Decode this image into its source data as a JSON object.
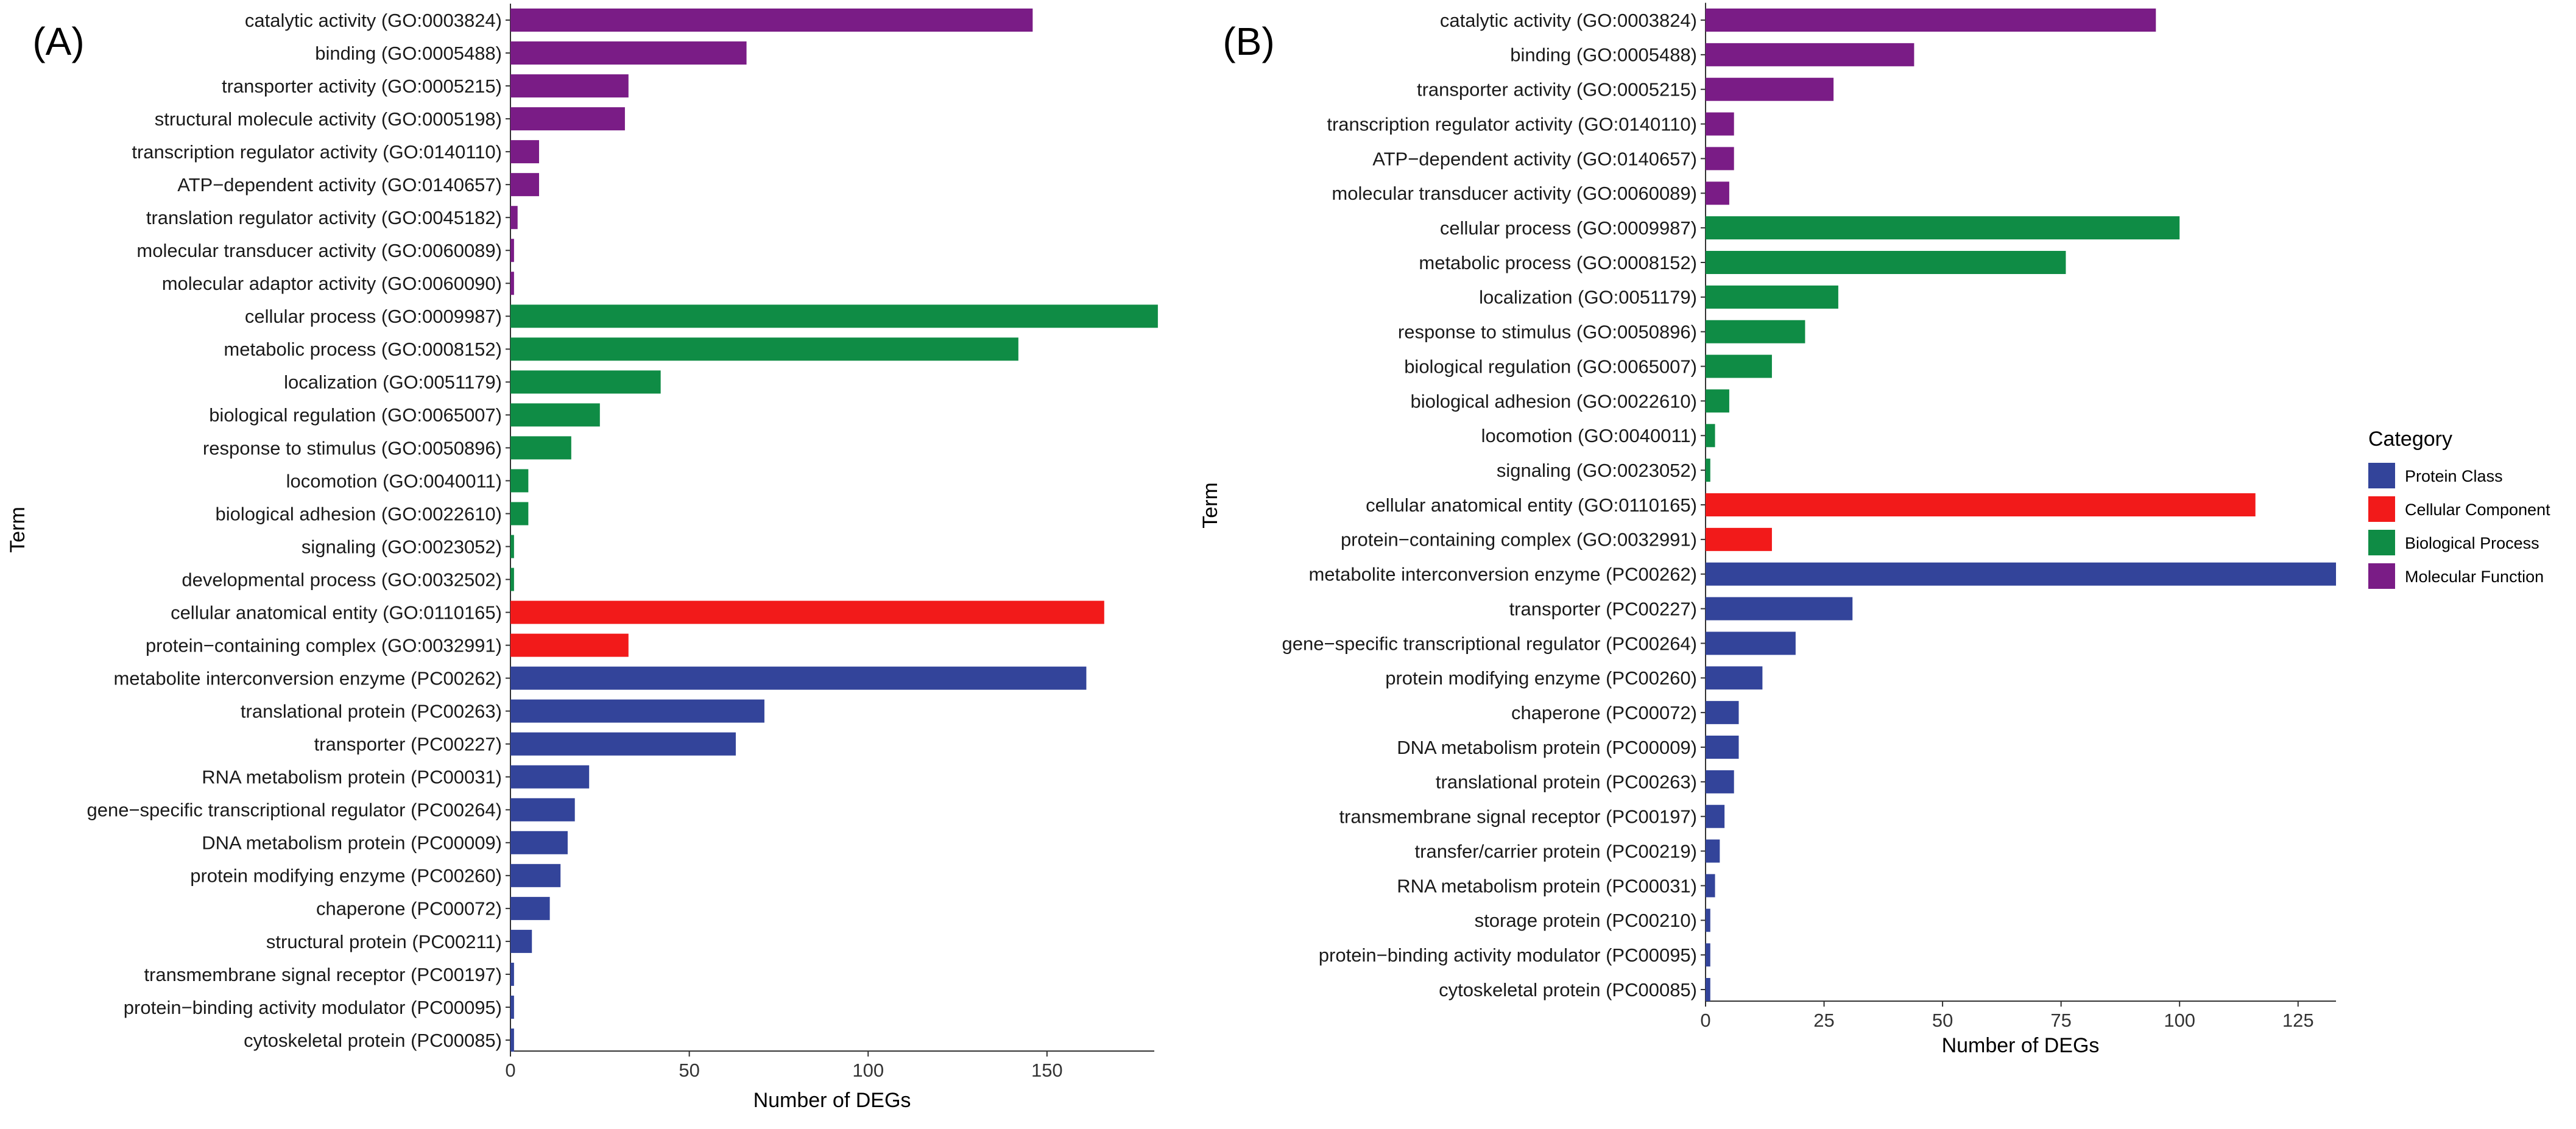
{
  "legend": {
    "title": "Category",
    "entries": [
      {
        "name": "Protein Class",
        "color": "#33449A"
      },
      {
        "name": "Cellular Component",
        "color": "#F21A1A"
      },
      {
        "name": "Biological Process",
        "color": "#0F8C45"
      },
      {
        "name": "Molecular Function",
        "color": "#7A1C86"
      }
    ]
  },
  "chart_data": [
    {
      "type": "bar",
      "orientation": "horizontal",
      "panel_label": "(A)",
      "xlabel": "Number of DEGs",
      "ylabel": "Term",
      "xlim": [
        0,
        180
      ],
      "xticks": [
        0,
        50,
        100,
        150
      ],
      "categories": [
        "catalytic activity (GO:0003824)",
        "binding (GO:0005488)",
        "transporter activity (GO:0005215)",
        "structural molecule activity (GO:0005198)",
        "transcription regulator activity (GO:0140110)",
        "ATP−dependent activity (GO:0140657)",
        "translation regulator activity (GO:0045182)",
        "molecular transducer activity (GO:0060089)",
        "molecular adaptor activity (GO:0060090)",
        "cellular process (GO:0009987)",
        "metabolic process (GO:0008152)",
        "localization (GO:0051179)",
        "biological regulation (GO:0065007)",
        "response to stimulus (GO:0050896)",
        "locomotion (GO:0040011)",
        "biological adhesion (GO:0022610)",
        "signaling (GO:0023052)",
        "developmental process (GO:0032502)",
        "cellular anatomical entity (GO:0110165)",
        "protein−containing complex (GO:0032991)",
        "metabolite interconversion enzyme (PC00262)",
        "translational protein (PC00263)",
        "transporter (PC00227)",
        "RNA metabolism protein (PC00031)",
        "gene−specific transcriptional regulator (PC00264)",
        "DNA metabolism protein (PC00009)",
        "protein modifying enzyme (PC00260)",
        "chaperone (PC00072)",
        "structural protein (PC00211)",
        "transmembrane signal receptor (PC00197)",
        "protein−binding activity modulator (PC00095)",
        "cytoskeletal protein (PC00085)"
      ],
      "values": [
        146,
        66,
        33,
        32,
        8,
        8,
        2,
        1,
        1,
        181,
        142,
        42,
        25,
        17,
        5,
        5,
        1,
        1,
        166,
        33,
        161,
        71,
        63,
        22,
        18,
        16,
        14,
        11,
        6,
        1,
        1,
        1
      ],
      "groups": [
        "Molecular Function",
        "Molecular Function",
        "Molecular Function",
        "Molecular Function",
        "Molecular Function",
        "Molecular Function",
        "Molecular Function",
        "Molecular Function",
        "Molecular Function",
        "Biological Process",
        "Biological Process",
        "Biological Process",
        "Biological Process",
        "Biological Process",
        "Biological Process",
        "Biological Process",
        "Biological Process",
        "Biological Process",
        "Cellular Component",
        "Cellular Component",
        "Protein Class",
        "Protein Class",
        "Protein Class",
        "Protein Class",
        "Protein Class",
        "Protein Class",
        "Protein Class",
        "Protein Class",
        "Protein Class",
        "Protein Class",
        "Protein Class",
        "Protein Class"
      ]
    },
    {
      "type": "bar",
      "orientation": "horizontal",
      "panel_label": "(B)",
      "xlabel": "Number of DEGs",
      "ylabel": "Term",
      "xlim": [
        0,
        133
      ],
      "xticks": [
        0,
        25,
        50,
        75,
        100,
        125
      ],
      "categories": [
        "catalytic activity (GO:0003824)",
        "binding (GO:0005488)",
        "transporter activity (GO:0005215)",
        "transcription regulator activity (GO:0140110)",
        "ATP−dependent activity (GO:0140657)",
        "molecular transducer activity (GO:0060089)",
        "cellular process (GO:0009987)",
        "metabolic process (GO:0008152)",
        "localization (GO:0051179)",
        "response to stimulus (GO:0050896)",
        "biological regulation (GO:0065007)",
        "biological adhesion (GO:0022610)",
        "locomotion (GO:0040011)",
        "signaling (GO:0023052)",
        "cellular anatomical entity (GO:0110165)",
        "protein−containing complex (GO:0032991)",
        "metabolite interconversion enzyme (PC00262)",
        "transporter (PC00227)",
        "gene−specific transcriptional regulator (PC00264)",
        "protein modifying enzyme (PC00260)",
        "chaperone (PC00072)",
        "DNA metabolism protein (PC00009)",
        "translational protein (PC00263)",
        "transmembrane signal receptor (PC00197)",
        "transfer/carrier protein (PC00219)",
        "RNA metabolism protein (PC00031)",
        "storage protein (PC00210)",
        "protein−binding activity modulator (PC00095)",
        "cytoskeletal protein (PC00085)"
      ],
      "values": [
        95,
        44,
        27,
        6,
        6,
        5,
        100,
        76,
        28,
        21,
        14,
        5,
        2,
        1,
        116,
        14,
        133,
        31,
        19,
        12,
        7,
        7,
        6,
        4,
        3,
        2,
        1,
        1,
        1
      ],
      "groups": [
        "Molecular Function",
        "Molecular Function",
        "Molecular Function",
        "Molecular Function",
        "Molecular Function",
        "Molecular Function",
        "Biological Process",
        "Biological Process",
        "Biological Process",
        "Biological Process",
        "Biological Process",
        "Biological Process",
        "Biological Process",
        "Biological Process",
        "Cellular Component",
        "Cellular Component",
        "Protein Class",
        "Protein Class",
        "Protein Class",
        "Protein Class",
        "Protein Class",
        "Protein Class",
        "Protein Class",
        "Protein Class",
        "Protein Class",
        "Protein Class",
        "Protein Class",
        "Protein Class",
        "Protein Class"
      ]
    }
  ]
}
